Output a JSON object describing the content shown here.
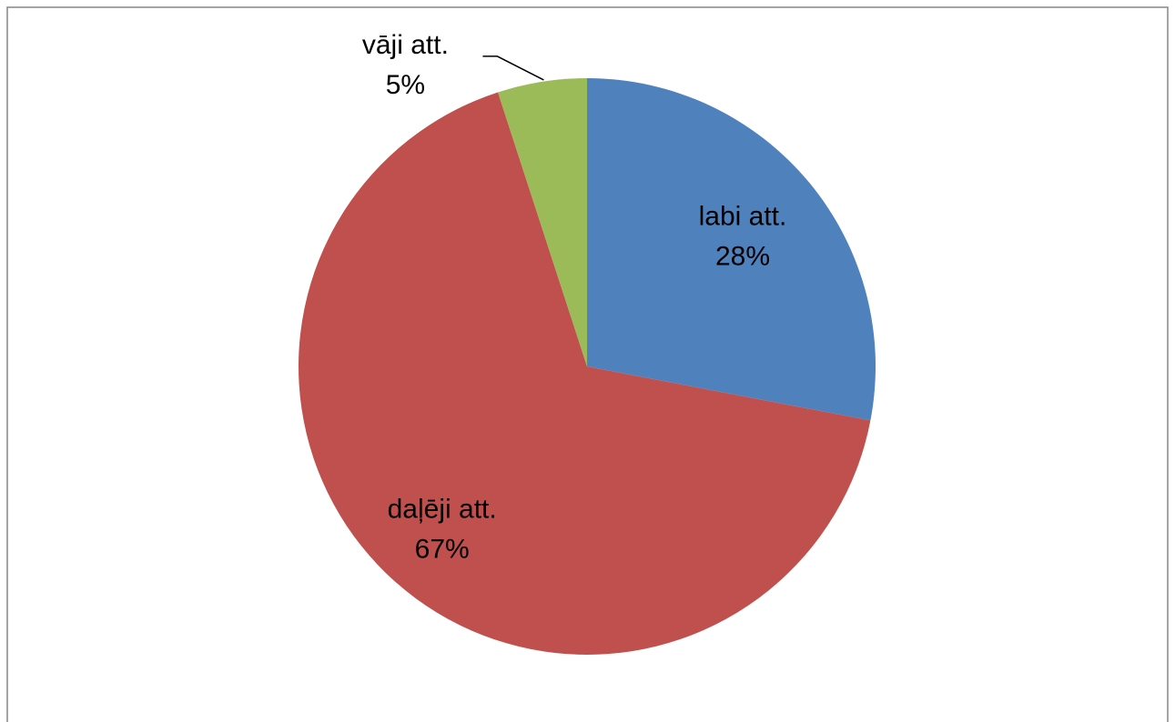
{
  "chart_data": {
    "type": "pie",
    "categories": [
      "labi att.",
      "daļēji att.",
      "vāji att."
    ],
    "values": [
      28,
      67,
      5
    ],
    "value_labels": [
      "28%",
      "67%",
      "5%"
    ],
    "colors": [
      "#4f81bd",
      "#c0504d",
      "#9bbb59"
    ]
  }
}
